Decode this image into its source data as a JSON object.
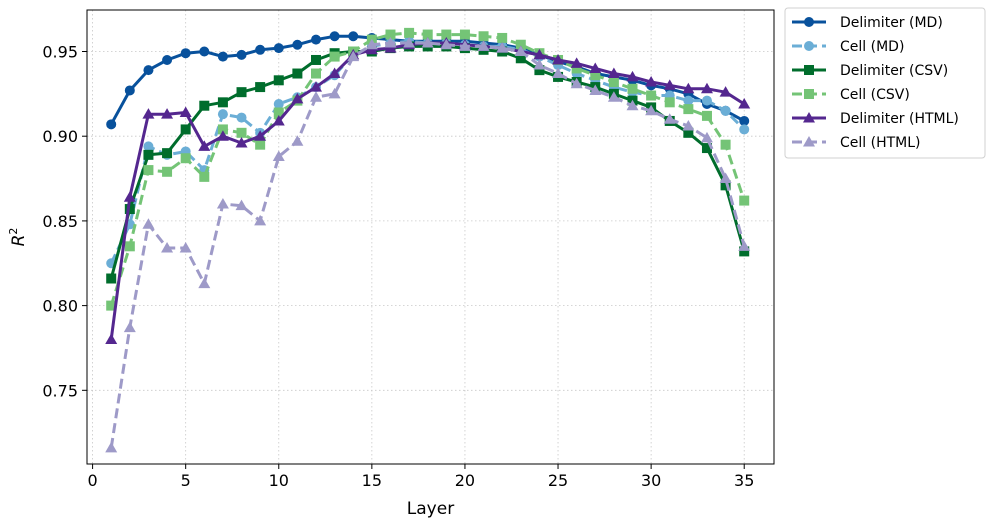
{
  "chart_data": {
    "type": "line",
    "xlabel": "Layer",
    "ylabel": "R",
    "ylabel_superscript": "2",
    "xlim": [
      -0.3,
      36.6
    ],
    "ylim": [
      0.7065,
      0.9745
    ],
    "xticks": [
      0,
      5,
      10,
      15,
      20,
      25,
      30,
      35
    ],
    "yticks": [
      0.75,
      0.8,
      0.85,
      0.9,
      0.95
    ],
    "ytick_labels": [
      "0.75",
      "0.80",
      "0.85",
      "0.90",
      "0.95"
    ],
    "grid": true,
    "legend_position": "outside-upper-right",
    "x": [
      1,
      2,
      3,
      4,
      5,
      6,
      7,
      8,
      9,
      10,
      11,
      12,
      13,
      14,
      15,
      16,
      17,
      18,
      19,
      20,
      21,
      22,
      23,
      24,
      25,
      26,
      27,
      28,
      29,
      30,
      31,
      32,
      33,
      34,
      35
    ],
    "series": [
      {
        "name": "Delimiter (MD)",
        "color": "#08519c",
        "dash": "solid",
        "marker": "circle",
        "values": [
          0.907,
          0.927,
          0.939,
          0.945,
          0.949,
          0.95,
          0.947,
          0.948,
          0.951,
          0.952,
          0.954,
          0.957,
          0.959,
          0.959,
          0.958,
          0.957,
          0.956,
          0.956,
          0.956,
          0.956,
          0.955,
          0.954,
          0.952,
          0.948,
          0.944,
          0.941,
          0.937,
          0.935,
          0.933,
          0.93,
          0.928,
          0.925,
          0.919,
          0.915,
          0.909
        ]
      },
      {
        "name": "Cell (MD)",
        "color": "#6baed6",
        "dash": "dashed",
        "marker": "circle",
        "values": [
          0.825,
          0.848,
          0.894,
          0.889,
          0.891,
          0.88,
          0.913,
          0.911,
          0.902,
          0.919,
          0.923,
          0.929,
          0.936,
          0.948,
          0.953,
          0.955,
          0.956,
          0.955,
          0.955,
          0.954,
          0.953,
          0.953,
          0.951,
          0.947,
          0.942,
          0.937,
          0.933,
          0.929,
          0.926,
          0.924,
          0.924,
          0.921,
          0.921,
          0.915,
          0.904
        ]
      },
      {
        "name": "Delimiter (CSV)",
        "color": "#006d2c",
        "dash": "solid",
        "marker": "square",
        "values": [
          0.816,
          0.857,
          0.889,
          0.89,
          0.904,
          0.918,
          0.92,
          0.926,
          0.929,
          0.933,
          0.937,
          0.945,
          0.949,
          0.95,
          0.95,
          0.952,
          0.953,
          0.953,
          0.953,
          0.952,
          0.951,
          0.95,
          0.946,
          0.939,
          0.935,
          0.932,
          0.929,
          0.925,
          0.921,
          0.917,
          0.909,
          0.902,
          0.893,
          0.871,
          0.832
        ]
      },
      {
        "name": "Cell (CSV)",
        "color": "#74c476",
        "dash": "dashed",
        "marker": "square",
        "values": [
          0.8,
          0.835,
          0.88,
          0.879,
          0.887,
          0.876,
          0.904,
          0.902,
          0.895,
          0.914,
          0.921,
          0.937,
          0.947,
          0.95,
          0.957,
          0.96,
          0.961,
          0.96,
          0.96,
          0.96,
          0.959,
          0.958,
          0.954,
          0.949,
          0.945,
          0.94,
          0.936,
          0.932,
          0.928,
          0.924,
          0.92,
          0.916,
          0.912,
          0.895,
          0.862
        ]
      },
      {
        "name": "Delimiter (HTML)",
        "color": "#54278f",
        "dash": "solid",
        "marker": "triangle",
        "values": [
          0.78,
          0.864,
          0.913,
          0.913,
          0.914,
          0.894,
          0.9,
          0.896,
          0.9,
          0.909,
          0.922,
          0.929,
          0.937,
          0.948,
          0.951,
          0.952,
          0.954,
          0.955,
          0.955,
          0.954,
          0.953,
          0.952,
          0.95,
          0.948,
          0.945,
          0.943,
          0.94,
          0.937,
          0.935,
          0.932,
          0.93,
          0.928,
          0.928,
          0.926,
          0.919
        ]
      },
      {
        "name": "Cell (HTML)",
        "color": "#9e9ac8",
        "dash": "dashed",
        "marker": "triangle",
        "values": [
          0.716,
          0.787,
          0.848,
          0.834,
          0.834,
          0.813,
          0.86,
          0.859,
          0.85,
          0.888,
          0.897,
          0.923,
          0.925,
          0.947,
          0.954,
          0.955,
          0.955,
          0.955,
          0.954,
          0.953,
          0.953,
          0.952,
          0.95,
          0.942,
          0.937,
          0.931,
          0.927,
          0.923,
          0.918,
          0.915,
          0.91,
          0.906,
          0.899,
          0.875,
          0.835
        ]
      }
    ]
  }
}
